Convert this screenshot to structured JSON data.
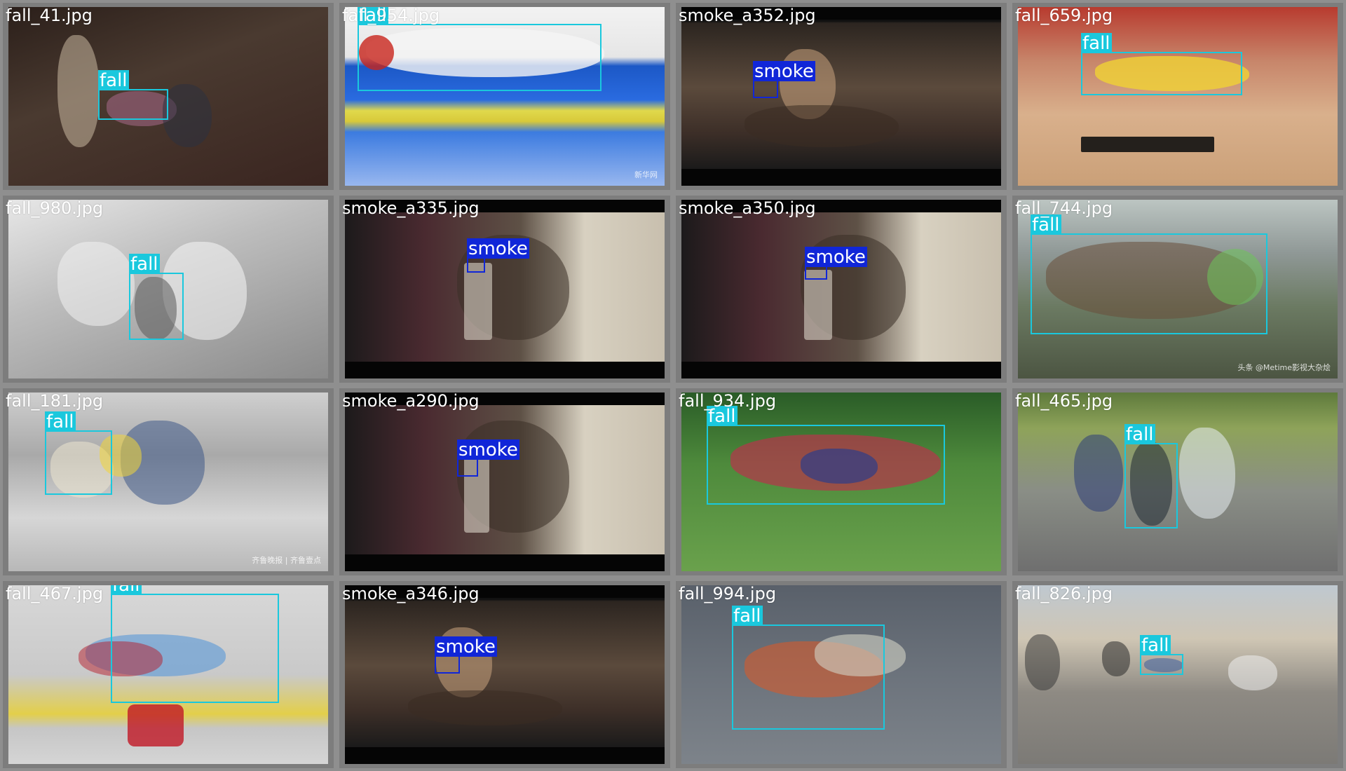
{
  "colors": {
    "fall": "#1ac8dd",
    "smoke": "#1026d8",
    "grid_bg": "#8f8f8f"
  },
  "tiles": [
    {
      "filename": "fall_41.jpg",
      "scene": "outdoor-night",
      "boxes": [
        {
          "cls": "fall",
          "label": "fall"
        }
      ]
    },
    {
      "filename": "fall_954.jpg",
      "scene": "mat",
      "boxes": [
        {
          "cls": "fall",
          "label": "fall"
        }
      ]
    },
    {
      "filename": "smoke_a352.jpg",
      "scene": "bar",
      "boxes": [
        {
          "cls": "smoke",
          "label": "smoke"
        }
      ]
    },
    {
      "filename": "fall_659.jpg",
      "scene": "court",
      "boxes": [
        {
          "cls": "fall",
          "label": "fall"
        }
      ]
    },
    {
      "filename": "fall_980.jpg",
      "scene": "bw",
      "boxes": [
        {
          "cls": "fall",
          "label": "fall"
        }
      ]
    },
    {
      "filename": "smoke_a335.jpg",
      "scene": "cafe",
      "boxes": [
        {
          "cls": "smoke",
          "label": "smoke"
        }
      ]
    },
    {
      "filename": "smoke_a350.jpg",
      "scene": "cafe",
      "boxes": [
        {
          "cls": "smoke",
          "label": "smoke"
        }
      ]
    },
    {
      "filename": "fall_744.jpg",
      "scene": "joker",
      "boxes": [
        {
          "cls": "fall",
          "label": "fall"
        }
      ]
    },
    {
      "filename": "fall_181.jpg",
      "scene": "station",
      "boxes": [
        {
          "cls": "fall",
          "label": "fall"
        }
      ]
    },
    {
      "filename": "smoke_a290.jpg",
      "scene": "cafe",
      "boxes": [
        {
          "cls": "smoke",
          "label": "smoke"
        }
      ]
    },
    {
      "filename": "fall_934.jpg",
      "scene": "pitch",
      "boxes": [
        {
          "cls": "fall",
          "label": "fall"
        }
      ]
    },
    {
      "filename": "fall_465.jpg",
      "scene": "street",
      "boxes": [
        {
          "cls": "fall",
          "label": "fall"
        }
      ]
    },
    {
      "filename": "fall_467.jpg",
      "scene": "walk",
      "boxes": [
        {
          "cls": "fall",
          "label": "fall"
        }
      ]
    },
    {
      "filename": "smoke_a346.jpg",
      "scene": "bar",
      "boxes": [
        {
          "cls": "smoke",
          "label": "smoke"
        }
      ]
    },
    {
      "filename": "fall_994.jpg",
      "scene": "road",
      "boxes": [
        {
          "cls": "fall",
          "label": "fall"
        }
      ]
    },
    {
      "filename": "fall_826.jpg",
      "scene": "city",
      "boxes": [
        {
          "cls": "fall",
          "label": "fall"
        }
      ]
    }
  ]
}
